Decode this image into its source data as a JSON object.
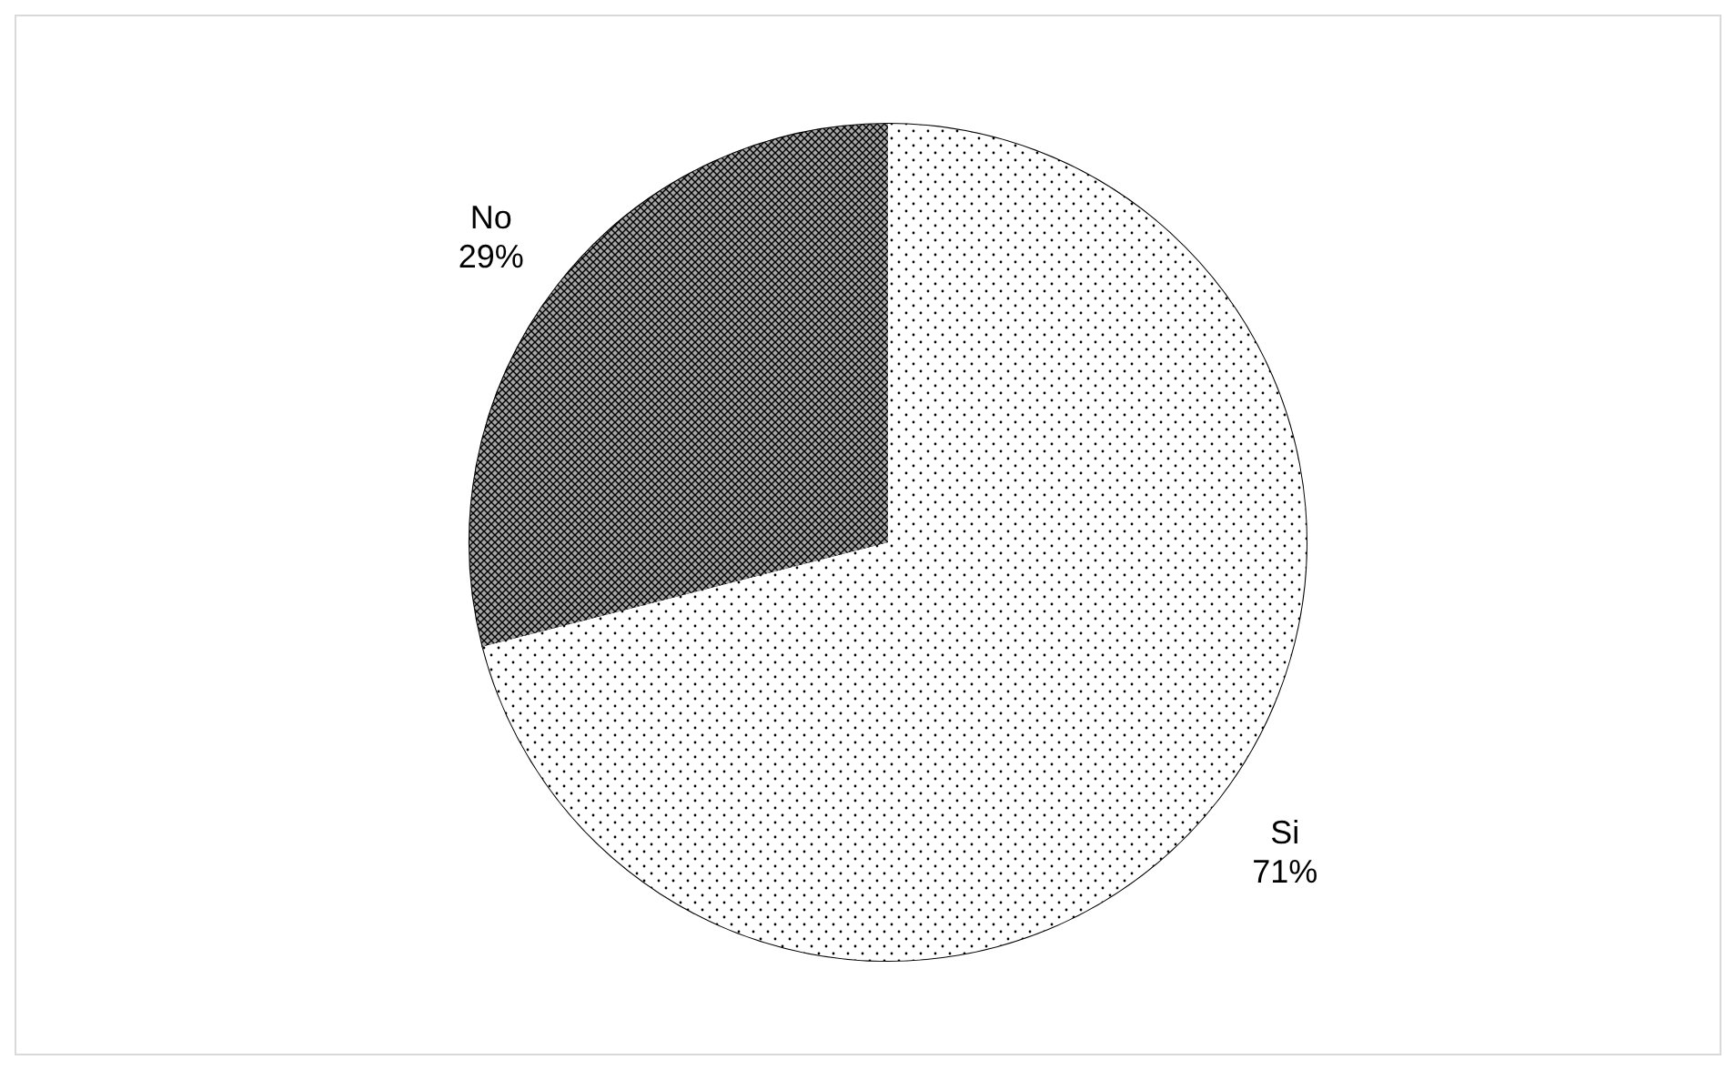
{
  "chart_data": {
    "type": "pie",
    "categories": [
      "Si",
      "No"
    ],
    "values": [
      71,
      29
    ],
    "colors": [
      "#ffffff",
      "#a6a6a6"
    ],
    "value_labels": [
      "71%",
      "29%"
    ]
  }
}
